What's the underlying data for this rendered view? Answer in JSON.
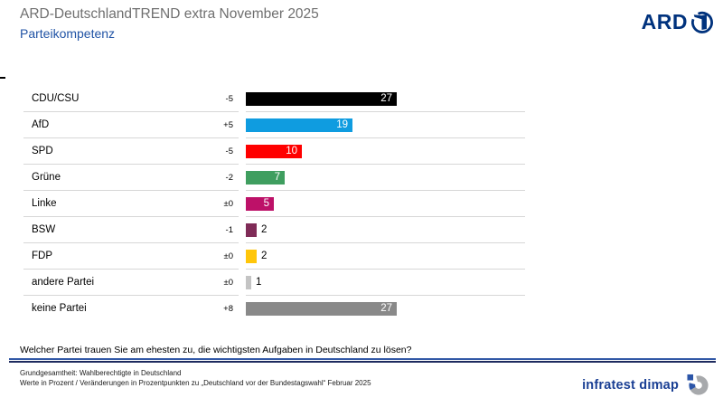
{
  "header": {
    "title": "ARD-DeutschlandTREND extra November 2025",
    "subtitle": "Parteikompetenz",
    "brand": "ARD"
  },
  "chart_data": {
    "type": "bar",
    "orientation": "horizontal",
    "title": "Parteikompetenz",
    "unit": "Prozent",
    "xlim": [
      0,
      50
    ],
    "grid": false,
    "value_axis_hidden": true,
    "categories": [
      "CDU/CSU",
      "AfD",
      "SPD",
      "Grüne",
      "Linke",
      "BSW",
      "FDP",
      "andere Partei",
      "keine Partei"
    ],
    "values": [
      27,
      19,
      10,
      7,
      5,
      2,
      2,
      1,
      27
    ],
    "changes": [
      "-5",
      "+5",
      "-5",
      "-2",
      "±0",
      "-1",
      "±0",
      "±0",
      "+8"
    ],
    "colors": [
      "#000000",
      "#0F9CE0",
      "#FF0000",
      "#3F9E5F",
      "#BD1168",
      "#7F2B57",
      "#FFC60A",
      "#C4C4C4",
      "#898989"
    ]
  },
  "question": "Welcher Partei trauen Sie am ehesten zu, die wichtigsten Aufgaben in Deutschland zu lösen?",
  "footer": {
    "line1": "Grundgesamtheit: Wahlberechtigte in Deutschland",
    "line2": "Werte in Prozent / Veränderungen in Prozentpunkten zu „Deutschland vor der Bundestagswahl“ Februar 2025",
    "brand": "infratest dimap"
  },
  "colors": {
    "title_gray": "#6F6F6F",
    "subtitle_blue": "#2053A5",
    "ard_navy": "#00327D",
    "rule_blue": "#3258A6",
    "rule_navy": "#1E2B5F",
    "separator_gray": "#D7D7D7",
    "brand_navy": "#1A3F94",
    "brand_logo_gray": "#A7A9AC"
  }
}
